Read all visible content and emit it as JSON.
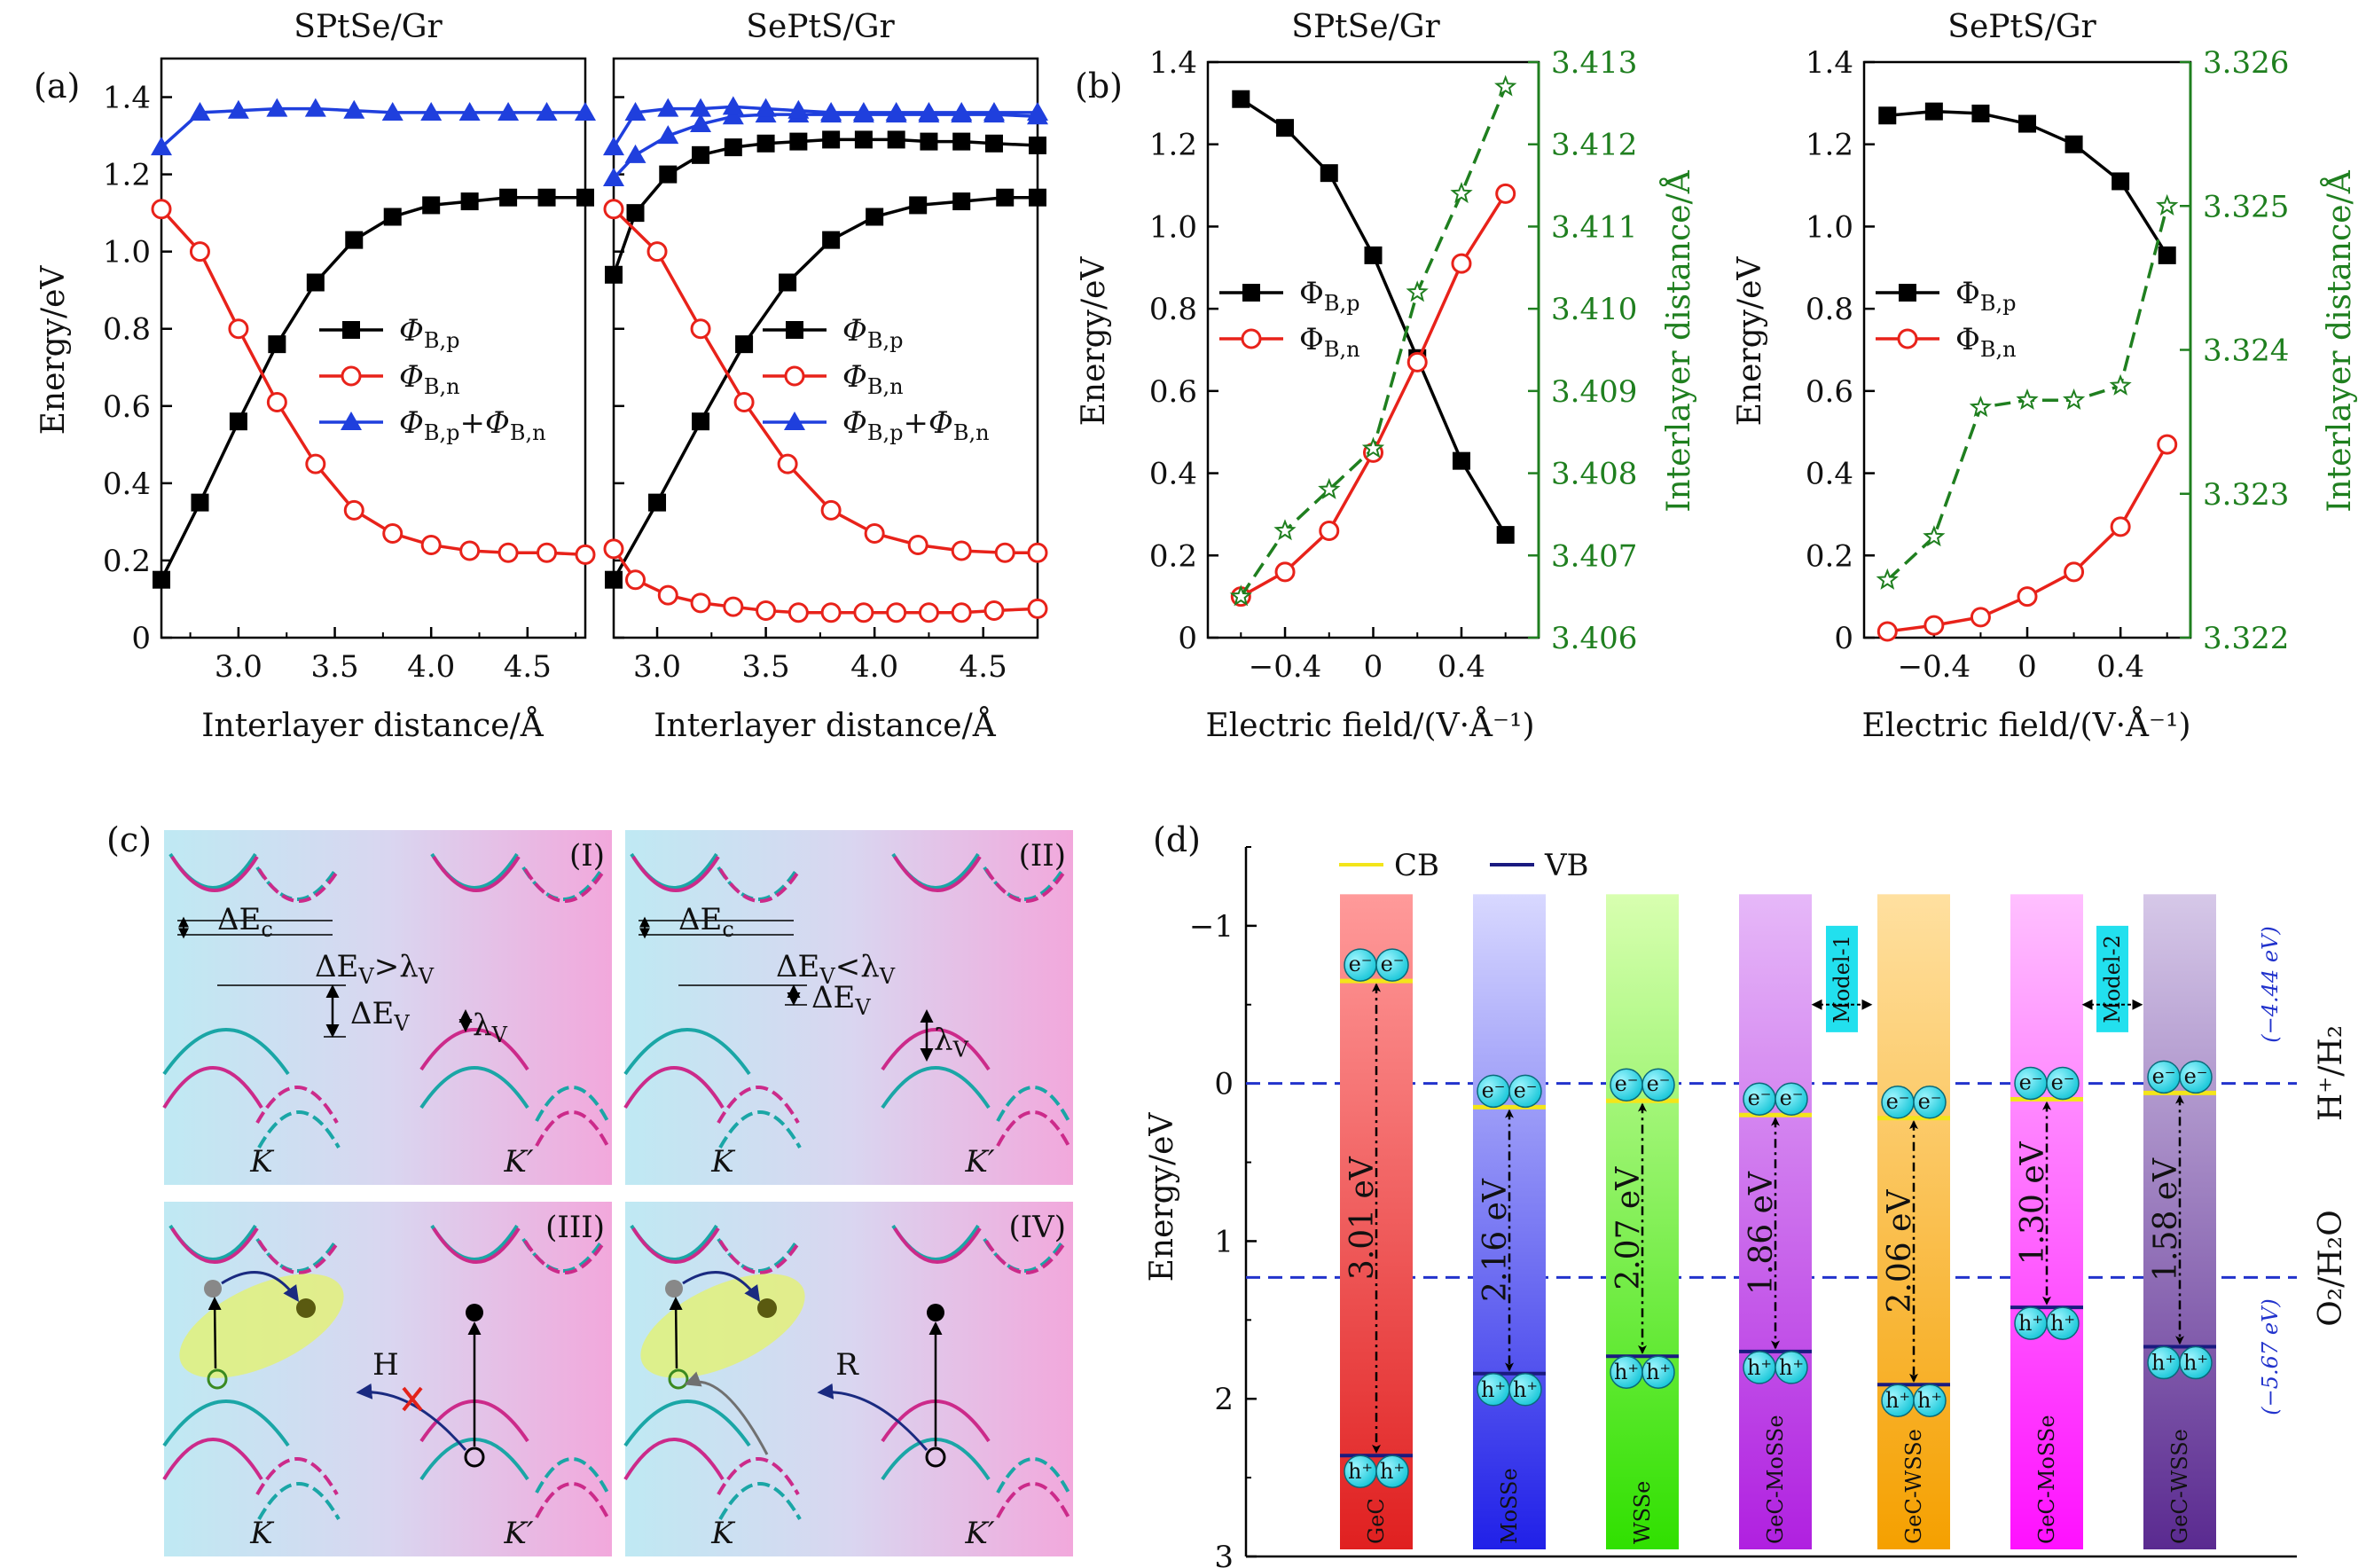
{
  "panel_labels": {
    "a": "(a)",
    "b": "(b)",
    "c": "(c)",
    "d": "(d)"
  },
  "chart_data": [
    {
      "id": "a1",
      "type": "line",
      "title": "SPtSe/Gr",
      "xlabel": "Interlayer distance/Å",
      "ylabel": "Energy/eV",
      "xlim": [
        2.6,
        4.8
      ],
      "ylim": [
        0,
        1.5
      ],
      "x_ticks": [
        "3.0",
        "3.5",
        "4.0",
        "4.5"
      ],
      "y_ticks": [
        "0",
        "0.2",
        "0.4",
        "0.6",
        "0.8",
        "1.0",
        "1.2",
        "1.4"
      ],
      "legend": {
        "placement": "center-right",
        "entries": [
          "Φ_B,p",
          "Φ_B,n",
          "Φ_B,p+Φ_B,n"
        ]
      },
      "series": [
        {
          "name": "Φ_B,p",
          "color": "#000000",
          "marker": "square",
          "x": [
            2.6,
            2.8,
            3.0,
            3.2,
            3.4,
            3.6,
            3.8,
            4.0,
            4.2,
            4.4,
            4.6,
            4.8
          ],
          "y": [
            0.15,
            0.35,
            0.56,
            0.76,
            0.92,
            1.03,
            1.09,
            1.12,
            1.13,
            1.14,
            1.14,
            1.14
          ]
        },
        {
          "name": "Φ_B,n",
          "color": "#e8221a",
          "marker": "circle-open",
          "x": [
            2.6,
            2.8,
            3.0,
            3.2,
            3.4,
            3.6,
            3.8,
            4.0,
            4.2,
            4.4,
            4.6,
            4.8
          ],
          "y": [
            1.11,
            1.0,
            0.8,
            0.61,
            0.45,
            0.33,
            0.27,
            0.24,
            0.225,
            0.22,
            0.22,
            0.215
          ]
        },
        {
          "name": "Φ_B,p+Φ_B,n",
          "color": "#1f3fdd",
          "marker": "triangle",
          "x": [
            2.6,
            2.8,
            3.0,
            3.2,
            3.4,
            3.6,
            3.8,
            4.0,
            4.2,
            4.4,
            4.6,
            4.8
          ],
          "y": [
            1.27,
            1.36,
            1.365,
            1.37,
            1.37,
            1.365,
            1.36,
            1.36,
            1.36,
            1.36,
            1.36,
            1.36
          ]
        }
      ]
    },
    {
      "id": "a2",
      "type": "line",
      "title": "SePtS/Gr",
      "xlabel": "Interlayer distance/Å",
      "xlim": [
        2.8,
        4.75
      ],
      "ylim": [
        0,
        1.5
      ],
      "x_ticks": [
        "3.0",
        "3.5",
        "4.0",
        "4.5"
      ],
      "legend": {
        "placement": "center-right",
        "entries": [
          "Φ_B,p",
          "Φ_B,n",
          "Φ_B,p+Φ_B,n"
        ]
      },
      "series": [
        {
          "name": "Φ_B,p (lower branch)",
          "color": "#000000",
          "marker": "square",
          "x": [
            2.8,
            3.0,
            3.2,
            3.4,
            3.6,
            3.8,
            4.0,
            4.2,
            4.4,
            4.6,
            4.75
          ],
          "y": [
            0.15,
            0.35,
            0.56,
            0.76,
            0.92,
            1.03,
            1.09,
            1.12,
            1.13,
            1.14,
            1.14
          ]
        },
        {
          "name": "Φ_B,p (upper branch)",
          "color": "#000000",
          "marker": "square",
          "x": [
            2.8,
            2.9,
            3.05,
            3.2,
            3.35,
            3.5,
            3.65,
            3.8,
            3.95,
            4.1,
            4.25,
            4.4,
            4.55,
            4.75
          ],
          "y": [
            0.94,
            1.1,
            1.2,
            1.25,
            1.27,
            1.28,
            1.285,
            1.29,
            1.29,
            1.29,
            1.285,
            1.285,
            1.28,
            1.275
          ]
        },
        {
          "name": "Φ_B,n (upper branch)",
          "color": "#e8221a",
          "marker": "circle-open",
          "x": [
            2.8,
            3.0,
            3.2,
            3.4,
            3.6,
            3.8,
            4.0,
            4.2,
            4.4,
            4.6,
            4.75
          ],
          "y": [
            1.11,
            1.0,
            0.8,
            0.61,
            0.45,
            0.33,
            0.27,
            0.24,
            0.225,
            0.22,
            0.22
          ]
        },
        {
          "name": "Φ_B,n (lower branch)",
          "color": "#e8221a",
          "marker": "circle-open",
          "x": [
            2.8,
            2.9,
            3.05,
            3.2,
            3.35,
            3.5,
            3.65,
            3.8,
            3.95,
            4.1,
            4.25,
            4.4,
            4.55,
            4.75
          ],
          "y": [
            0.23,
            0.15,
            0.11,
            0.09,
            0.08,
            0.07,
            0.065,
            0.065,
            0.065,
            0.065,
            0.065,
            0.065,
            0.07,
            0.075
          ]
        },
        {
          "name": "Φ_B,p+Φ_B,n (branch 1)",
          "color": "#1f3fdd",
          "marker": "triangle",
          "x": [
            2.8,
            2.9,
            3.05,
            3.2,
            3.35,
            3.5,
            3.65,
            3.8,
            3.95,
            4.1,
            4.25,
            4.4,
            4.55,
            4.75
          ],
          "y": [
            1.19,
            1.25,
            1.3,
            1.33,
            1.35,
            1.355,
            1.355,
            1.355,
            1.355,
            1.355,
            1.355,
            1.355,
            1.355,
            1.35
          ]
        },
        {
          "name": "Φ_B,p+Φ_B,n (branch 2)",
          "color": "#1f3fdd",
          "marker": "triangle",
          "x": [
            2.8,
            2.9,
            3.05,
            3.2,
            3.35,
            3.5,
            3.65,
            3.8,
            3.95,
            4.1,
            4.25,
            4.4,
            4.55,
            4.75
          ],
          "y": [
            1.27,
            1.36,
            1.37,
            1.37,
            1.375,
            1.37,
            1.365,
            1.36,
            1.36,
            1.36,
            1.36,
            1.36,
            1.36,
            1.36
          ]
        }
      ]
    },
    {
      "id": "b1",
      "type": "line",
      "title": "SPtSe/Gr",
      "xlabel": "Electric field/(V·Å⁻¹)",
      "ylabel": "Energy/eV",
      "ylabel_right": "Interlayer distance/Å",
      "xlim": [
        -0.75,
        0.75
      ],
      "ylim": [
        0,
        1.4
      ],
      "ylim_right": [
        3.406,
        3.413
      ],
      "x_ticks": [
        "−0.4",
        "0",
        "0.4"
      ],
      "y_ticks": [
        "0",
        "0.2",
        "0.4",
        "0.6",
        "0.8",
        "1.0",
        "1.2",
        "1.4"
      ],
      "y_ticks_right": [
        "3.406",
        "3.407",
        "3.408",
        "3.409",
        "3.410",
        "3.411",
        "3.412",
        "3.413"
      ],
      "legend": {
        "placement": "center-left",
        "entries": [
          "Φ_B,p",
          "Φ_B,n"
        ]
      },
      "series": [
        {
          "name": "Φ_B,p",
          "color": "#000000",
          "marker": "square",
          "x": [
            -0.6,
            -0.4,
            -0.2,
            0,
            0.2,
            0.4,
            0.6
          ],
          "y": [
            1.31,
            1.24,
            1.13,
            0.93,
            0.68,
            0.43,
            0.25
          ]
        },
        {
          "name": "Φ_B,n",
          "color": "#e8221a",
          "marker": "circle-open",
          "x": [
            -0.6,
            -0.4,
            -0.2,
            0,
            0.2,
            0.4,
            0.6
          ],
          "y": [
            0.1,
            0.16,
            0.26,
            0.45,
            0.67,
            0.91,
            1.08
          ]
        },
        {
          "name": "Interlayer distance",
          "axis": "right",
          "color": "#1f7f1f",
          "marker": "star-open",
          "dash": true,
          "x": [
            -0.6,
            -0.4,
            -0.2,
            0,
            0.2,
            0.4,
            0.6
          ],
          "y": [
            3.4065,
            3.4073,
            3.4078,
            3.4083,
            3.4102,
            3.4114,
            3.4127
          ]
        }
      ]
    },
    {
      "id": "b2",
      "type": "line",
      "title": "SePtS/Gr",
      "xlabel": "Electric field/(V·Å⁻¹)",
      "ylabel": "Energy/eV",
      "ylabel_right": "Interlayer distance/Å",
      "xlim": [
        -0.7,
        0.7
      ],
      "ylim": [
        0,
        1.4
      ],
      "ylim_right": [
        3.322,
        3.326
      ],
      "x_ticks": [
        "−0.4",
        "0",
        "0.4"
      ],
      "y_ticks": [
        "0",
        "0.2",
        "0.4",
        "0.6",
        "0.8",
        "1.0",
        "1.2",
        "1.4"
      ],
      "y_ticks_right": [
        "3.322",
        "3.323",
        "3.324",
        "3.325",
        "3.326"
      ],
      "legend": {
        "placement": "center-left",
        "entries": [
          "Φ_B,p",
          "Φ_B,n"
        ]
      },
      "series": [
        {
          "name": "Φ_B,p",
          "color": "#000000",
          "marker": "square",
          "x": [
            -0.6,
            -0.4,
            -0.2,
            0,
            0.2,
            0.4,
            0.6
          ],
          "y": [
            1.27,
            1.28,
            1.275,
            1.25,
            1.2,
            1.11,
            0.93
          ]
        },
        {
          "name": "Φ_B,n",
          "color": "#e8221a",
          "marker": "circle-open",
          "x": [
            -0.6,
            -0.4,
            -0.2,
            0,
            0.2,
            0.4,
            0.6
          ],
          "y": [
            0.015,
            0.03,
            0.05,
            0.1,
            0.16,
            0.27,
            0.47
          ]
        },
        {
          "name": "Interlayer distance",
          "axis": "right",
          "color": "#1f7f1f",
          "marker": "star-open",
          "dash": true,
          "x": [
            -0.6,
            -0.4,
            -0.2,
            0,
            0.2,
            0.4,
            0.6
          ],
          "y": [
            3.3224,
            3.3227,
            3.3236,
            3.32365,
            3.32365,
            3.32375,
            3.325
          ]
        }
      ]
    },
    {
      "id": "d",
      "type": "bar",
      "ylabel": "Energy/eV",
      "ylim": [
        -1.5,
        3
      ],
      "y_inverted": true,
      "y_ticks": [
        "−1",
        "0",
        "1",
        "2",
        "3"
      ],
      "legend": {
        "placement": "top-left",
        "entries": [
          "CB",
          "VB"
        ]
      },
      "reference_lines": [
        {
          "y": 0,
          "label": "H⁺/H₂",
          "note": "(−4.44 eV)"
        },
        {
          "y": 1.23,
          "label": "O₂/H₂O",
          "note": "(−5.67 eV)"
        }
      ],
      "categories": [
        "GeC",
        "MoSSe",
        "WSSe",
        "GeC-MoSSe",
        "GeC-WSSe",
        "GeC-MoSSe",
        "GeC-WSSe"
      ],
      "cb": [
        -0.65,
        0.15,
        0.11,
        0.2,
        0.22,
        0.1,
        0.06
      ],
      "vb": [
        2.36,
        1.84,
        1.73,
        1.7,
        1.91,
        1.42,
        1.67
      ],
      "gaps": [
        "3.01 eV",
        "2.16 eV",
        "2.07 eV",
        "1.86 eV",
        "2.06 eV",
        "1.30 eV",
        "1.58 eV"
      ],
      "model_tags": [
        "Model-1",
        "Model-2"
      ],
      "electron_label": "e⁻",
      "hole_label": "h⁺"
    }
  ],
  "diagram_c": {
    "quadrants": [
      {
        "roman": "(I)",
        "ec_label": "ΔE",
        "ec_sub": "c",
        "relation_a": "ΔE",
        "relation_sub_a": "V",
        "relation_op": ">λ",
        "relation_sub_b": "V",
        "ev_label": "ΔE",
        "ev_sub": "V",
        "lambda_label": "λ",
        "lambda_sub": "V",
        "k": "K",
        "kp": "K′"
      },
      {
        "roman": "(II)",
        "ec_label": "ΔE",
        "ec_sub": "c",
        "relation_a": "ΔE",
        "relation_sub_a": "V",
        "relation_op": "<λ",
        "relation_sub_b": "V",
        "ev_label": "ΔE",
        "ev_sub": "V",
        "lambda_label": "λ",
        "lambda_sub": "V",
        "k": "K",
        "kp": "K′"
      },
      {
        "roman": "(III)",
        "stack": "H",
        "k": "K",
        "kp": "K′"
      },
      {
        "roman": "(IV)",
        "stack": "R",
        "k": "K",
        "kp": "K′"
      }
    ]
  }
}
